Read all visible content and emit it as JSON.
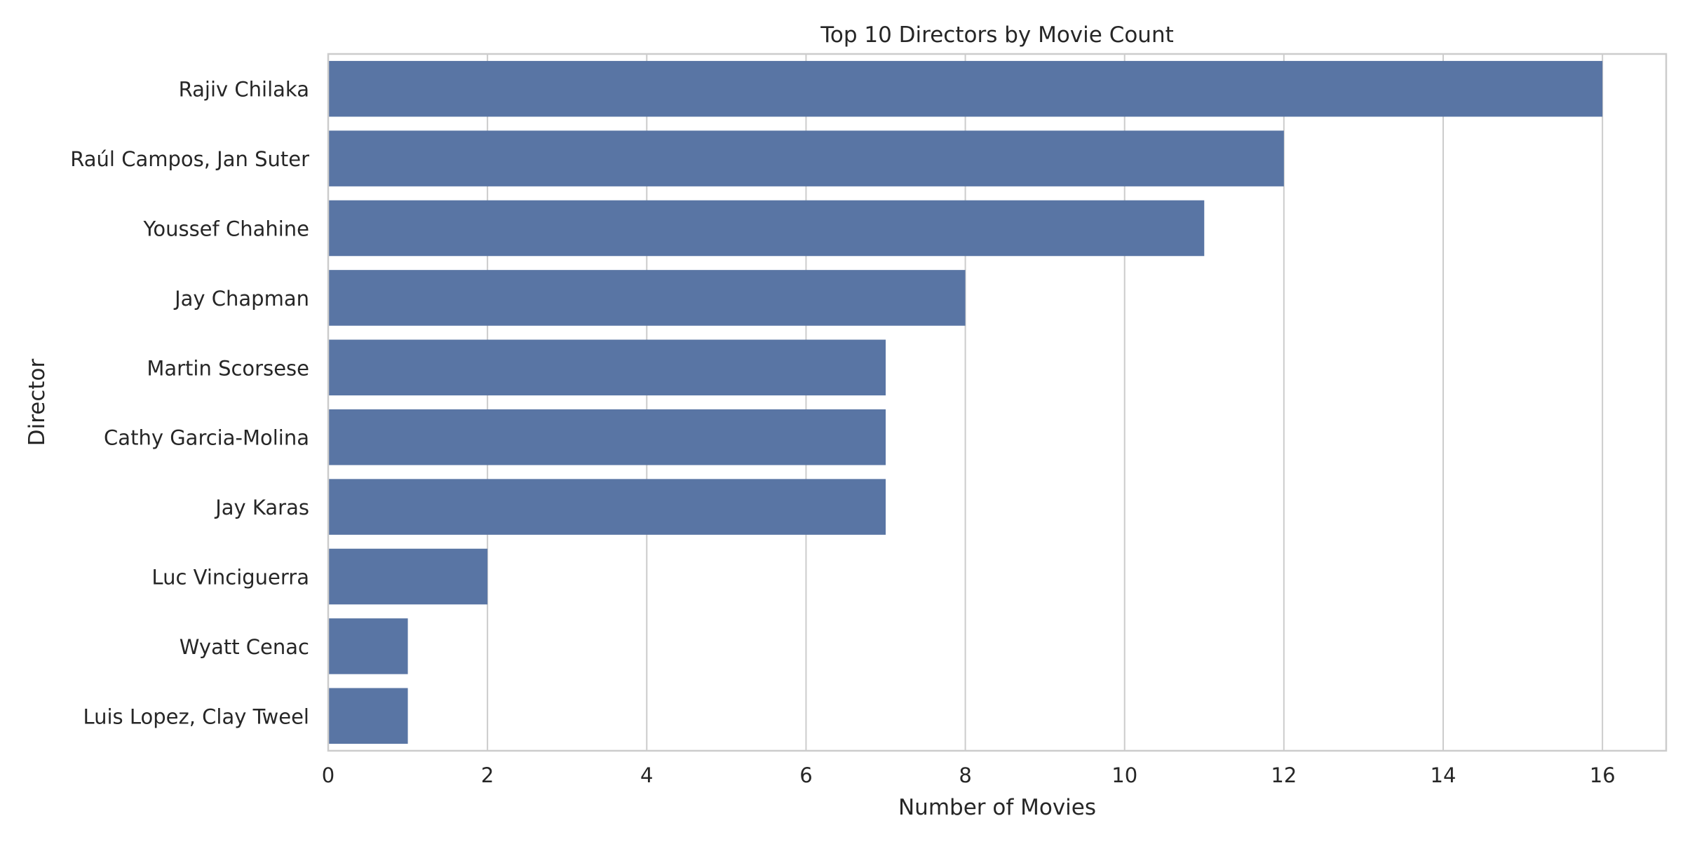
{
  "chart_data": {
    "type": "bar",
    "orientation": "horizontal",
    "title": "Top 10 Directors by Movie Count",
    "xlabel": "Number of Movies",
    "ylabel": "Director",
    "categories": [
      "Rajiv Chilaka",
      "Raúl Campos, Jan Suter",
      "Youssef Chahine",
      "Jay Chapman",
      "Martin Scorsese",
      "Cathy Garcia-Molina",
      "Jay Karas",
      "Luc Vinciguerra",
      "Wyatt Cenac",
      "Luis Lopez, Clay Tweel"
    ],
    "values": [
      16,
      12,
      11,
      8,
      7,
      7,
      7,
      2,
      1,
      1
    ],
    "xlim": [
      0,
      16.8
    ],
    "xticks": [
      0,
      2,
      4,
      6,
      8,
      10,
      12,
      14,
      16
    ],
    "grid": true,
    "legend": false,
    "colors": {
      "bar": "#5975a4",
      "grid": "#cccccc",
      "spine": "#cccccc",
      "text": "#262626",
      "background": "#ffffff"
    }
  }
}
